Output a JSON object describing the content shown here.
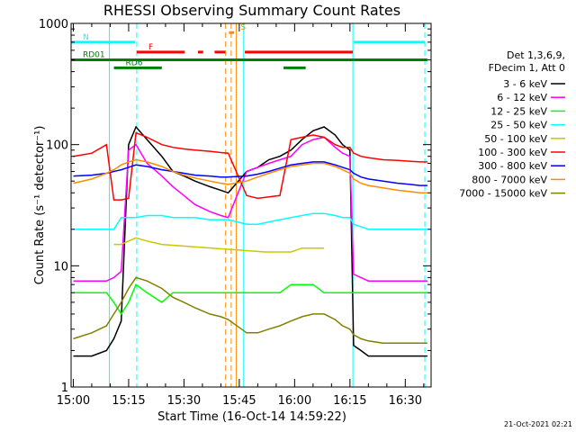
{
  "chart_data": {
    "type": "line",
    "title": "RHESSI Observing Summary Count Rates",
    "xlabel": "Start Time (16-Oct-14 14:59:22)",
    "ylabel": "Count Rate (s⁻¹ detector⁻¹)",
    "x_unit": "minutes since 15:00",
    "xlim": [
      -0.6,
      97
    ],
    "ylim": [
      1,
      1000
    ],
    "yscale": "log",
    "x_ticks": [
      {
        "x": 0,
        "label": "15:00"
      },
      {
        "x": 15,
        "label": "15:15"
      },
      {
        "x": 30,
        "label": "15:30"
      },
      {
        "x": 45,
        "label": "15:45"
      },
      {
        "x": 60,
        "label": "16:00"
      },
      {
        "x": 75,
        "label": "16:15"
      },
      {
        "x": 90,
        "label": "16:30"
      }
    ],
    "y_ticks": [
      {
        "y": 1,
        "label": "1"
      },
      {
        "y": 10,
        "label": "10"
      },
      {
        "y": 100,
        "label": "100"
      },
      {
        "y": 1000,
        "label": "1000"
      }
    ],
    "legend_header": [
      "Det 1,3,6,9,",
      "FDecim 1, Att 0"
    ],
    "legend_placement": "right, outside plot",
    "series": [
      {
        "name": "3 - 6 keV",
        "color": "#000000",
        "x": [
          0,
          5,
          9,
          11,
          13,
          15,
          17,
          20,
          24,
          27,
          30,
          33,
          37,
          40,
          42,
          47,
          50,
          53,
          56,
          59,
          62,
          65,
          68,
          71,
          73,
          75,
          76,
          78,
          80,
          84,
          88,
          91,
          94,
          96
        ],
        "y": [
          1.8,
          1.8,
          2.0,
          2.5,
          3.5,
          100,
          140,
          110,
          80,
          60,
          55,
          50,
          45,
          42,
          40,
          60,
          65,
          75,
          80,
          90,
          110,
          130,
          140,
          120,
          100,
          90,
          2.2,
          2.0,
          1.8,
          1.8,
          1.8,
          1.8,
          1.8,
          1.8
        ]
      },
      {
        "name": "6 - 12 keV",
        "color": "#ff00ff",
        "x": [
          0,
          5,
          9,
          11,
          13,
          15,
          17,
          20,
          24,
          27,
          30,
          33,
          37,
          40,
          42,
          47,
          50,
          53,
          56,
          59,
          62,
          65,
          68,
          71,
          73,
          75,
          76,
          78,
          80,
          84,
          88,
          91,
          94,
          96
        ],
        "y": [
          7.5,
          7.5,
          7.5,
          8,
          9,
          90,
          100,
          70,
          55,
          45,
          38,
          32,
          28,
          26,
          25,
          60,
          65,
          70,
          75,
          80,
          100,
          110,
          115,
          95,
          85,
          80,
          8.5,
          8,
          7.5,
          7.5,
          7.5,
          7.5,
          7.5,
          7.5
        ]
      },
      {
        "name": "12 - 25 keV",
        "color": "#00ff00",
        "x": [
          0,
          5,
          9,
          11,
          13,
          15,
          17,
          20,
          24,
          27,
          30,
          33,
          37,
          40,
          42,
          47,
          50,
          53,
          56,
          59,
          62,
          65,
          68,
          71,
          73,
          75,
          76,
          78,
          80,
          84,
          88,
          91,
          94,
          96
        ],
        "y": [
          6,
          6,
          6,
          5,
          4,
          5,
          7,
          6,
          5,
          6,
          6,
          6,
          6,
          6,
          6,
          6,
          6,
          6,
          6,
          7,
          7,
          7,
          6,
          6,
          6,
          6,
          6,
          6,
          6,
          6,
          6,
          6,
          6,
          6
        ]
      },
      {
        "name": "25 - 50 keV",
        "color": "#00ffff",
        "x": [
          0,
          5,
          9,
          11,
          13,
          15,
          17,
          20,
          24,
          27,
          30,
          33,
          37,
          40,
          42,
          47,
          50,
          53,
          56,
          59,
          62,
          65,
          68,
          71,
          73,
          75,
          76,
          78,
          80,
          84,
          88,
          91,
          94,
          96
        ],
        "y": [
          20,
          20,
          20,
          20,
          25,
          25,
          25,
          26,
          26,
          25,
          25,
          25,
          24,
          24,
          24,
          22,
          22,
          23,
          24,
          25,
          26,
          27,
          27,
          26,
          25,
          25,
          22,
          21,
          20,
          20,
          20,
          20,
          20,
          20
        ]
      },
      {
        "name": "50 - 100 keV",
        "color": "#c8c800",
        "x": [
          11,
          13,
          15,
          17,
          20,
          24,
          52,
          56,
          59,
          62,
          65,
          68
        ],
        "y": [
          15,
          15,
          16,
          17,
          16,
          15,
          13,
          13,
          13,
          14,
          14,
          14
        ]
      },
      {
        "name": "100 - 300 keV",
        "color": "#ff0000",
        "x": [
          0,
          5,
          9,
          11,
          13,
          15,
          17,
          20,
          24,
          27,
          30,
          33,
          37,
          40,
          42,
          47,
          50,
          53,
          56,
          59,
          62,
          65,
          68,
          71,
          73,
          75,
          76,
          78,
          80,
          84,
          88,
          91,
          94,
          96
        ],
        "y": [
          80,
          85,
          100,
          35,
          35,
          36,
          125,
          115,
          100,
          95,
          92,
          90,
          88,
          86,
          85,
          38,
          36,
          37,
          38,
          110,
          115,
          120,
          115,
          100,
          95,
          95,
          85,
          80,
          78,
          75,
          74,
          73,
          72,
          72
        ]
      },
      {
        "name": "300 - 800 keV",
        "color": "#0000ff",
        "x": [
          0,
          5,
          9,
          11,
          13,
          15,
          17,
          20,
          24,
          27,
          30,
          33,
          37,
          40,
          42,
          47,
          50,
          53,
          56,
          59,
          62,
          65,
          68,
          71,
          73,
          75,
          76,
          78,
          80,
          84,
          88,
          91,
          94,
          96
        ],
        "y": [
          55,
          56,
          58,
          60,
          62,
          65,
          68,
          66,
          62,
          60,
          58,
          56,
          55,
          54,
          54,
          55,
          57,
          60,
          64,
          68,
          70,
          72,
          72,
          68,
          65,
          62,
          58,
          54,
          52,
          50,
          48,
          47,
          46,
          46
        ]
      },
      {
        "name": "800 - 7000 keV",
        "color": "#ff8c00",
        "x": [
          0,
          5,
          9,
          11,
          13,
          15,
          17,
          20,
          24,
          27,
          30,
          33,
          37,
          40,
          42,
          47,
          50,
          53,
          56,
          59,
          62,
          65,
          68,
          71,
          73,
          75,
          76,
          78,
          80,
          84,
          88,
          91,
          94,
          96
        ],
        "y": [
          48,
          52,
          58,
          62,
          68,
          72,
          75,
          72,
          66,
          60,
          56,
          53,
          50,
          48,
          47,
          50,
          54,
          58,
          62,
          66,
          68,
          70,
          70,
          66,
          62,
          58,
          52,
          48,
          46,
          44,
          42,
          41,
          40,
          40
        ]
      },
      {
        "name": "7000 - 15000 keV",
        "color": "#808000",
        "x": [
          0,
          5,
          9,
          11,
          13,
          15,
          17,
          20,
          24,
          27,
          30,
          33,
          37,
          40,
          42,
          47,
          50,
          53,
          56,
          59,
          62,
          65,
          68,
          71,
          73,
          75,
          76,
          78,
          80,
          84,
          88,
          91,
          94,
          96
        ],
        "y": [
          2.5,
          2.8,
          3.2,
          4,
          5,
          6.5,
          8,
          7.5,
          6.5,
          5.5,
          5,
          4.5,
          4,
          3.8,
          3.6,
          2.8,
          2.8,
          3,
          3.2,
          3.5,
          3.8,
          4,
          4,
          3.6,
          3.2,
          3,
          2.7,
          2.5,
          2.4,
          2.3,
          2.3,
          2.3,
          2.3,
          2.3
        ]
      }
    ],
    "vertical_lines": [
      {
        "x": 9.8,
        "color": "#00ffff",
        "style": "solid"
      },
      {
        "x": 17.2,
        "color": "#00ffff",
        "style": "dashed"
      },
      {
        "x": 41.3,
        "color": "#ff8c00",
        "style": "dashed"
      },
      {
        "x": 42.8,
        "color": "#ff8c00",
        "style": "dashed"
      },
      {
        "x": 44.2,
        "color": "#ff8c00",
        "style": "solid"
      },
      {
        "x": 46.2,
        "color": "#00ffff",
        "style": "solid"
      },
      {
        "x": 75.8,
        "color": "#00ffff",
        "style": "solid"
      },
      {
        "x": 95.3,
        "color": "#00ffff",
        "style": "dashed"
      }
    ],
    "flag_bars": [
      {
        "label": "N",
        "color": "#00ffff",
        "y": 700,
        "segments": [
          [
            -0.6,
            16.8
          ],
          [
            76,
            95.3
          ]
        ]
      },
      {
        "label": "F",
        "color": "#ff0000",
        "y": 580,
        "segments": [
          [
            17.2,
            30.2
          ],
          [
            33.8,
            35.2
          ],
          [
            38.3,
            41.2
          ],
          [
            46.5,
            75.8
          ]
        ]
      },
      {
        "label": "S",
        "color": "#ff8c00",
        "y": 840,
        "segments": [
          [
            42.2,
            43.6
          ]
        ]
      },
      {
        "label": "RD01",
        "color": "#008000",
        "y": 500,
        "segments": [
          [
            -0.6,
            96
          ]
        ]
      },
      {
        "label": "RD6",
        "color": "#008000",
        "y": 430,
        "segments": [
          [
            11,
            24
          ],
          [
            57,
            63
          ]
        ]
      }
    ]
  },
  "footer": {
    "timestamp": "21-Oct-2021 02:21"
  }
}
